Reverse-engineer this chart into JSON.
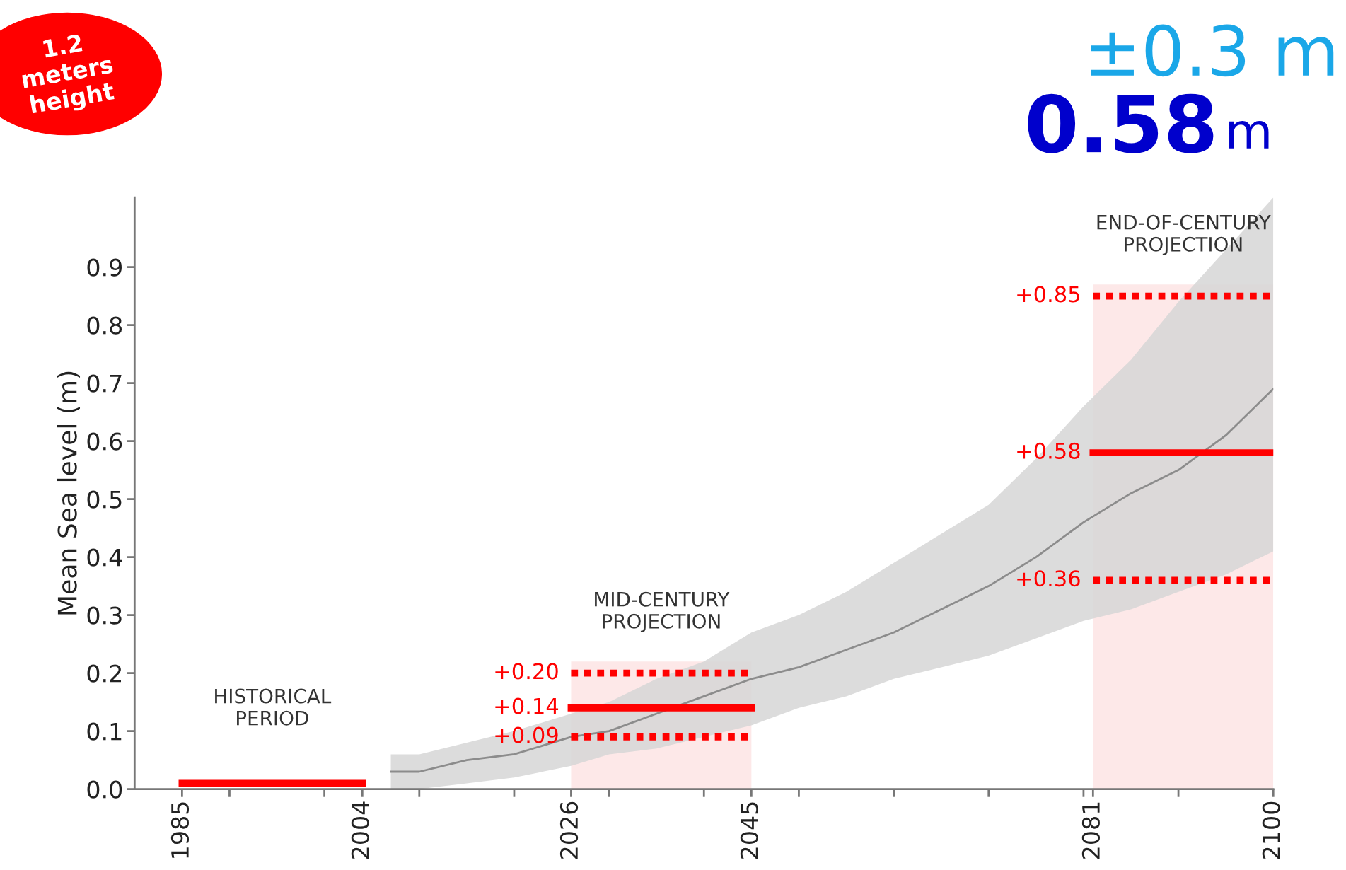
{
  "chart_data": {
    "type": "line",
    "ylabel": "Mean Sea level (m)",
    "xlim": [
      1980,
      2100
    ],
    "ylim": [
      0,
      1.02
    ],
    "xticks": [
      1985,
      {
        "value": 1990,
        "label": null
      },
      {
        "value": 2000,
        "label": null
      },
      2004,
      {
        "value": 2010,
        "label": null
      },
      {
        "value": 2020,
        "label": null
      },
      2026,
      {
        "value": 2030,
        "label": null
      },
      {
        "value": 2040,
        "label": null
      },
      2045,
      {
        "value": 2050,
        "label": null
      },
      {
        "value": 2060,
        "label": null
      },
      {
        "value": 2070,
        "label": null
      },
      {
        "value": 2080,
        "label": null
      },
      2081,
      {
        "value": 2090,
        "label": null
      },
      2100
    ],
    "yticks": [
      {
        "value": 0,
        "label": "0.0"
      },
      0.1,
      0.2,
      0.3,
      0.4,
      0.5,
      0.6,
      0.7,
      0.8,
      0.9
    ],
    "grid": false,
    "series": [
      {
        "color": "#8c8c8c",
        "x": [
          2007,
          2010,
          2015,
          2020,
          2026,
          2030,
          2035,
          2040,
          2045,
          2050,
          2055,
          2060,
          2065,
          2070,
          2075,
          2080,
          2085,
          2090,
          2095,
          2100
        ],
        "values": [
          0.03,
          0.03,
          0.05,
          0.06,
          0.09,
          0.1,
          0.13,
          0.16,
          0.19,
          0.21,
          0.24,
          0.27,
          0.31,
          0.35,
          0.4,
          0.46,
          0.51,
          0.55,
          0.61,
          0.69
        ],
        "lower": [
          0.0,
          0.0,
          0.01,
          0.02,
          0.04,
          0.06,
          0.07,
          0.09,
          0.11,
          0.14,
          0.16,
          0.19,
          0.21,
          0.23,
          0.26,
          0.29,
          0.31,
          0.34,
          0.37,
          0.41
        ],
        "upper": [
          0.06,
          0.06,
          0.08,
          0.1,
          0.13,
          0.15,
          0.19,
          0.22,
          0.27,
          0.3,
          0.34,
          0.39,
          0.44,
          0.49,
          0.57,
          0.66,
          0.74,
          0.84,
          0.93,
          1.02
        ]
      },
      {
        "color": "#ff0000",
        "line_style": "solid",
        "x": [
          1985,
          2004
        ],
        "values": [
          0.01,
          0.01
        ]
      },
      {
        "color": "#ff0000",
        "line_style": "dotted",
        "x": [
          2026,
          2045
        ],
        "values": [
          0.2,
          0.2
        ],
        "value_labels": [
          "+0.20",
          null
        ]
      },
      {
        "color": "#ff0000",
        "line_style": "solid",
        "x": [
          2026,
          2045
        ],
        "values": [
          0.14,
          0.14
        ],
        "value_labels": [
          "+0.14",
          null
        ]
      },
      {
        "color": "#ff0000",
        "line_style": "dotted",
        "x": [
          2026,
          2045
        ],
        "values": [
          0.09,
          0.09
        ],
        "value_labels": [
          "+0.09",
          null
        ]
      },
      {
        "color": "#ff0000",
        "line_style": "dotted",
        "x": [
          2081,
          2100
        ],
        "values": [
          0.85,
          0.85
        ],
        "value_labels": [
          "+0.85",
          null
        ]
      },
      {
        "color": "#ff0000",
        "line_style": "solid",
        "x": [
          2081,
          2100
        ],
        "values": [
          0.58,
          0.58
        ],
        "value_labels": [
          "+0.58",
          null
        ]
      },
      {
        "color": "#ff0000",
        "line_style": "dotted",
        "x": [
          2081,
          2100
        ],
        "values": [
          0.36,
          0.36
        ],
        "value_labels": [
          "+0.36",
          null
        ]
      }
    ],
    "bands": [
      {
        "axis": "x",
        "from": 2026,
        "to": 2045,
        "label": "MID-CENTURY\nPROJECTION",
        "color": "#fde8e8"
      },
      {
        "axis": "x",
        "from": 2081,
        "to": 2100,
        "label": "END-OF-CENTURY\nPROJECTION",
        "color": "#fde8e8"
      }
    ],
    "annotations": [
      "1.2\nmeters\nheight",
      "±0.3 m",
      "0.58",
      "m",
      {
        "text": "HISTORICAL\nPERIOD",
        "x": 1994.5,
        "y": 0.01
      }
    ]
  }
}
